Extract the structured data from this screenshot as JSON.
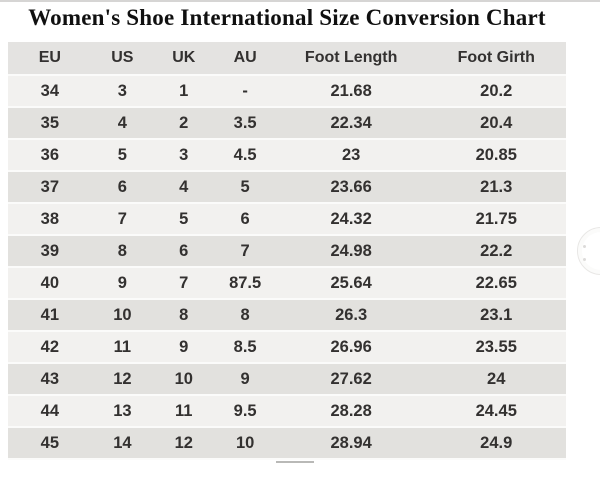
{
  "chart_data": {
    "type": "table",
    "title": "Women's Shoe International Size Conversion Chart",
    "columns": [
      "EU",
      "US",
      "UK",
      "AU",
      "Foot Length",
      "Foot Girth"
    ],
    "rows": [
      [
        "34",
        "3",
        "1",
        "-",
        "21.68",
        "20.2"
      ],
      [
        "35",
        "4",
        "2",
        "3.5",
        "22.34",
        "20.4"
      ],
      [
        "36",
        "5",
        "3",
        "4.5",
        "23",
        "20.85"
      ],
      [
        "37",
        "6",
        "4",
        "5",
        "23.66",
        "21.3"
      ],
      [
        "38",
        "7",
        "5",
        "6",
        "24.32",
        "21.75"
      ],
      [
        "39",
        "8",
        "6",
        "7",
        "24.98",
        "22.2"
      ],
      [
        "40",
        "9",
        "7",
        "87.5",
        "25.64",
        "22.65"
      ],
      [
        "41",
        "10",
        "8",
        "8",
        "26.3",
        "23.1"
      ],
      [
        "42",
        "11",
        "9",
        "8.5",
        "26.96",
        "23.55"
      ],
      [
        "43",
        "12",
        "10",
        "9",
        "27.62",
        "24"
      ],
      [
        "44",
        "13",
        "11",
        "9.5",
        "28.28",
        "24.45"
      ],
      [
        "45",
        "14",
        "12",
        "10",
        "28.94",
        "24.9"
      ]
    ]
  },
  "colors": {
    "header_bg": "#e4e3e1",
    "row_dark": "#e2e1de",
    "row_light": "#f2f1ef",
    "separator": "#fbfbfa",
    "text": "#333130",
    "title_text": "#101010",
    "top_line": "#d6d5d4"
  }
}
